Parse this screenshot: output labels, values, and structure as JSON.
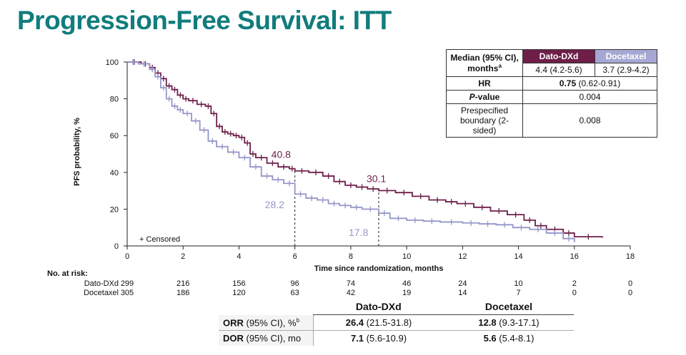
{
  "title": "Progression-Free Survival: ITT",
  "colors": {
    "dato": "#6e1f49",
    "docetaxel": "#9496c9",
    "title": "#117c7c"
  },
  "chart_data": {
    "type": "line",
    "title": "Progression-Free Survival: ITT",
    "xlabel": "Time since randomization, months",
    "ylabel": "PFS probability, %",
    "xlim": [
      0,
      18
    ],
    "ylim": [
      0,
      100
    ],
    "x_ticks": [
      "0",
      "2",
      "4",
      "6",
      "8",
      "10",
      "12",
      "14",
      "16",
      "18"
    ],
    "y_ticks": [
      "0",
      "20",
      "40",
      "60",
      "80",
      "100"
    ],
    "censored_label": "+ Censored",
    "series": [
      {
        "name": "Dato-DXd",
        "x": [
          0,
          0.5,
          0.8,
          1.0,
          1.2,
          1.4,
          1.6,
          1.8,
          2.0,
          2.2,
          2.5,
          2.8,
          3.0,
          3.2,
          3.4,
          3.6,
          3.8,
          4.0,
          4.2,
          4.4,
          4.6,
          5.0,
          5.4,
          5.8,
          6.0,
          6.5,
          7.0,
          7.4,
          7.8,
          8.2,
          8.6,
          9.0,
          9.6,
          10.2,
          10.8,
          11.4,
          11.8,
          12.4,
          13.0,
          13.6,
          14.2,
          14.6,
          15.0,
          15.6,
          16.0,
          17.0
        ],
        "y": [
          100,
          99,
          97,
          94,
          91,
          87,
          85,
          82,
          80,
          79,
          77,
          76,
          72,
          65,
          62,
          61,
          60,
          59,
          56,
          50,
          48,
          45,
          43,
          42,
          40.8,
          40,
          38,
          35,
          33,
          32,
          31,
          30.1,
          29,
          27,
          25,
          24,
          23,
          21,
          19,
          17,
          14,
          11,
          9,
          7,
          5,
          4.5
        ]
      },
      {
        "name": "Docetaxel",
        "x": [
          0,
          0.4,
          0.8,
          1.0,
          1.2,
          1.4,
          1.6,
          1.8,
          2.0,
          2.3,
          2.6,
          2.9,
          3.2,
          3.6,
          4.0,
          4.4,
          4.8,
          5.2,
          5.6,
          6.0,
          6.4,
          6.8,
          7.2,
          7.6,
          8.0,
          8.4,
          9.0,
          9.4,
          10.0,
          10.6,
          11.2,
          12.0,
          12.6,
          13.2,
          13.8,
          14.4,
          15.0,
          15.6,
          16.0
        ],
        "y": [
          100,
          99,
          96,
          92,
          86,
          80,
          76,
          74,
          72,
          68,
          63,
          57,
          54,
          51,
          48,
          43,
          38,
          36,
          34,
          28.2,
          26,
          25,
          23,
          22,
          21,
          20,
          17.8,
          15,
          14,
          13.5,
          13,
          12.5,
          12,
          11.5,
          10,
          9,
          7,
          4,
          2
        ]
      }
    ],
    "annotations": [
      {
        "label": "40.8",
        "series": "Dato-DXd",
        "x": 6,
        "y": 40.8
      },
      {
        "label": "30.1",
        "series": "Dato-DXd",
        "x": 9,
        "y": 30.1
      },
      {
        "label": "28.2",
        "series": "Docetaxel",
        "x": 6,
        "y": 28.2
      },
      {
        "label": "17.8",
        "series": "Docetaxel",
        "x": 9,
        "y": 17.8
      }
    ],
    "reference_lines_x": [
      6,
      9
    ]
  },
  "stats_table": {
    "header_label": "Median (95% CI), months",
    "header_label_sup": "a",
    "col1": "Dato-DXd",
    "col2": "Docetaxel",
    "median_dato": "4.4 (4.2-5.6)",
    "median_doc": "3.7 (2.9-4.2)",
    "hr_label": "HR",
    "hr_value_bold": "0.75",
    "hr_value_ci": "(0.62-0.91)",
    "p_label_italic": "P",
    "p_label_rest": "-value",
    "p_value": "0.004",
    "boundary_label": "Prespecified boundary (2-sided)",
    "boundary_value": "0.008"
  },
  "at_risk": {
    "title": "No. at risk:",
    "rows": [
      {
        "name": "Dato-DXd",
        "values": [
          "299",
          "216",
          "156",
          "96",
          "74",
          "46",
          "24",
          "10",
          "2",
          "0"
        ]
      },
      {
        "name": "Docetaxel",
        "values": [
          "305",
          "186",
          "120",
          "63",
          "42",
          "19",
          "14",
          "7",
          "0",
          "0"
        ]
      }
    ]
  },
  "response_table": {
    "col1": "Dato-DXd",
    "col2": "Docetaxel",
    "rows": [
      {
        "label_bold": "ORR",
        "label_rest": " (95% CI), %",
        "label_sup": "b",
        "v1_bold": "26.4",
        "v1_rest": " (21.5-31.8)",
        "v2_bold": "12.8",
        "v2_rest": " (9.3-17.1)"
      },
      {
        "label_bold": "DOR",
        "label_rest": " (95% CI), mo",
        "label_sup": "",
        "v1_bold": "7.1",
        "v1_rest": " (5.6-10.9)",
        "v2_bold": "5.6",
        "v2_rest": " (5.4-8.1)"
      }
    ]
  }
}
